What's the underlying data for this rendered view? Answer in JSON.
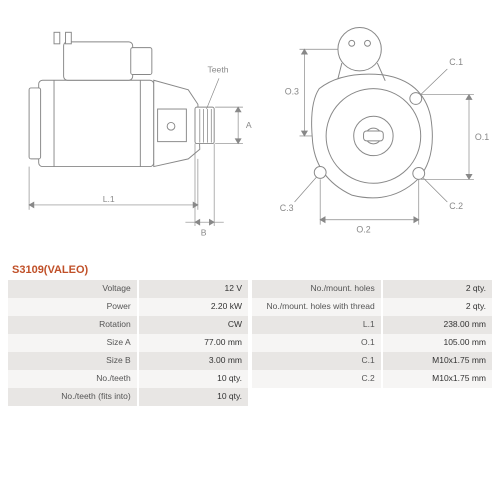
{
  "part_title": "S3109(VALEO)",
  "colors": {
    "title": "#c05028",
    "row_odd": "#e8e6e4",
    "row_even": "#f6f5f4",
    "line": "#888888",
    "text": "#555555"
  },
  "diagram": {
    "side_view": {
      "labels": {
        "L1": "L.1",
        "B": "B",
        "A": "A",
        "Teeth": "Teeth"
      }
    },
    "front_view": {
      "labels": {
        "O1": "O.1",
        "O2": "O.2",
        "O3": "O.3",
        "C1": "C.1",
        "C2": "C.2",
        "C3": "C.3"
      }
    }
  },
  "specs_left": [
    {
      "label": "Voltage",
      "value": "12 V"
    },
    {
      "label": "Power",
      "value": "2.20 kW"
    },
    {
      "label": "Rotation",
      "value": "CW"
    },
    {
      "label": "Size A",
      "value": "77.00 mm"
    },
    {
      "label": "Size B",
      "value": "3.00 mm"
    },
    {
      "label": "No./teeth",
      "value": "10 qty."
    },
    {
      "label": "No./teeth (fits into)",
      "value": "10 qty."
    }
  ],
  "specs_right": [
    {
      "label": "No./mount. holes",
      "value": "2 qty."
    },
    {
      "label": "No./mount. holes with thread",
      "value": "2 qty."
    },
    {
      "label": "L.1",
      "value": "238.00 mm"
    },
    {
      "label": "O.1",
      "value": "105.00 mm"
    },
    {
      "label": "C.1",
      "value": "M10x1.75 mm"
    },
    {
      "label": "C.2",
      "value": "M10x1.75 mm"
    }
  ]
}
